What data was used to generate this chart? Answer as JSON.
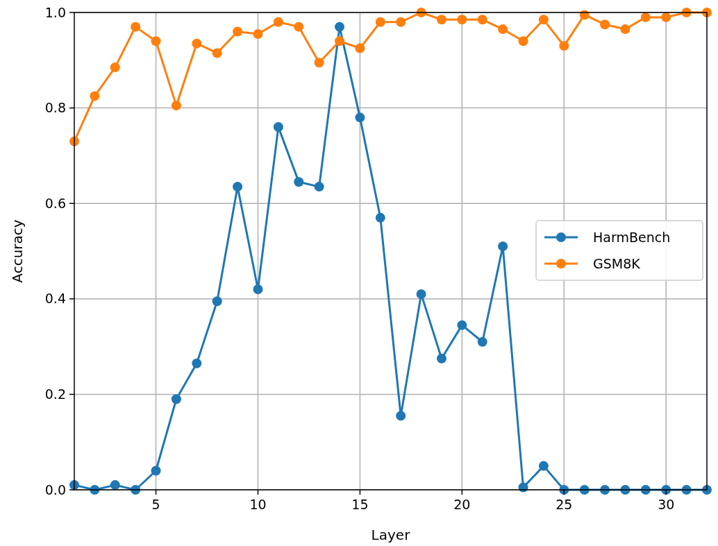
{
  "chart_data": {
    "type": "line",
    "xlabel": "Layer",
    "ylabel": "Accuracy",
    "x": [
      1,
      2,
      3,
      4,
      5,
      6,
      7,
      8,
      9,
      10,
      11,
      12,
      13,
      14,
      15,
      16,
      17,
      18,
      19,
      20,
      21,
      22,
      23,
      24,
      25,
      26,
      27,
      28,
      29,
      30,
      31,
      32
    ],
    "series": [
      {
        "name": "HarmBench",
        "color": "#1f77b4",
        "values": [
          0.01,
          0,
          0.01,
          0,
          0.04,
          0.19,
          0.265,
          0.395,
          0.635,
          0.42,
          0.76,
          0.645,
          0.635,
          0.97,
          0.78,
          0.57,
          0.155,
          0.41,
          0.275,
          0.345,
          0.31,
          0.51,
          0.005,
          0.05,
          0,
          0,
          0,
          0,
          0,
          0,
          0,
          0
        ]
      },
      {
        "name": "GSM8K",
        "color": "#ff7f0e",
        "values": [
          0.73,
          0.825,
          0.885,
          0.97,
          0.94,
          0.805,
          0.935,
          0.915,
          0.96,
          0.955,
          0.98,
          0.97,
          0.895,
          0.94,
          0.925,
          0.98,
          0.98,
          1.0,
          0.985,
          0.985,
          0.985,
          0.965,
          0.94,
          0.985,
          0.93,
          0.995,
          0.975,
          0.965,
          0.99,
          0.99,
          1.0,
          1.0
        ]
      }
    ],
    "xlim": [
      1,
      32
    ],
    "xticks": [
      5,
      10,
      15,
      20,
      25,
      30
    ],
    "ylim": [
      0,
      1
    ],
    "yticks": [
      {
        "value": 0,
        "label": "0.0"
      },
      {
        "value": 0.2,
        "label": "0.2"
      },
      {
        "value": 0.4,
        "label": "0.4"
      },
      {
        "value": 0.6,
        "label": "0.6"
      },
      {
        "value": 0.8,
        "label": "0.8"
      },
      {
        "value": 1,
        "label": "1.0"
      }
    ],
    "grid": true,
    "legend": "right",
    "marker": "circle",
    "line_style": "solid"
  }
}
